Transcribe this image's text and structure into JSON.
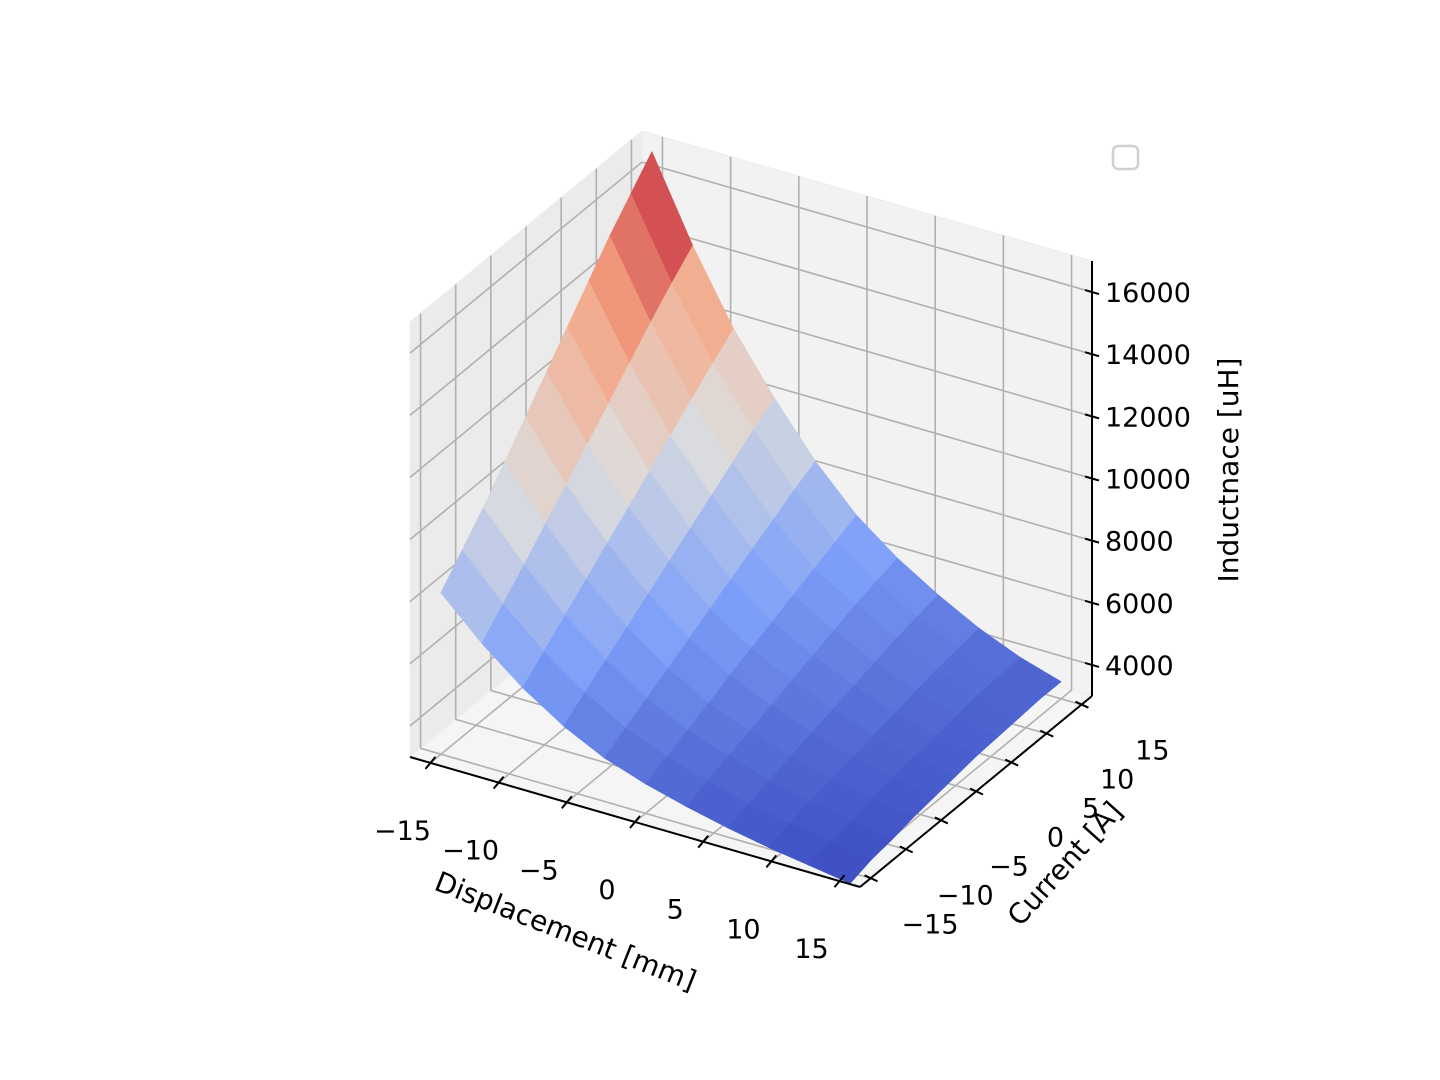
{
  "chart_data": {
    "type": "surface",
    "xlabel": "Displacement [mm]",
    "ylabel": "Current [A]",
    "zlabel": "Inductnace [uH]",
    "x_ticks": [
      -15,
      -10,
      -5,
      0,
      5,
      10,
      15
    ],
    "y_ticks": [
      -15,
      -10,
      -5,
      0,
      5,
      10,
      15
    ],
    "z_ticks": [
      4000,
      6000,
      8000,
      10000,
      12000,
      14000,
      16000
    ],
    "x_tick_labels": [
      "−15",
      "−10",
      "−5",
      "0",
      "5",
      "10",
      "15"
    ],
    "y_tick_labels": [
      "−15",
      "−10",
      "−5",
      "0",
      "5",
      "10",
      "15"
    ],
    "z_tick_labels": [
      "4000",
      "6000",
      "8000",
      "10000",
      "12000",
      "14000",
      "16000"
    ],
    "xlim": [
      -16.5,
      16.5
    ],
    "ylim": [
      -16.5,
      16.5
    ],
    "zlim": [
      3000,
      17000
    ],
    "colormap": "coolwarm",
    "grid": true,
    "legend": {
      "placement": "top-right",
      "entries": []
    },
    "x": [
      -15,
      -12,
      -9,
      -6,
      -3,
      0,
      3,
      6,
      9,
      12,
      15
    ],
    "y": [
      -15,
      -12,
      -9,
      -6,
      -3,
      0,
      3,
      6,
      9,
      12,
      15
    ],
    "z_rows_by_y": [
      [
        8200,
        6950,
        5900,
        5050,
        4400,
        3950,
        3600,
        3300,
        3050,
        2850,
        2650
      ],
      [
        9000,
        7650,
        6500,
        5550,
        4800,
        4250,
        3850,
        3500,
        3250,
        3050,
        2850
      ],
      [
        9800,
        8350,
        7100,
        6050,
        5200,
        4550,
        4100,
        3700,
        3400,
        3150,
        2950
      ],
      [
        10700,
        9100,
        7700,
        6550,
        5600,
        4850,
        4350,
        3900,
        3550,
        3300,
        3100
      ],
      [
        11600,
        9800,
        8300,
        7050,
        6000,
        5200,
        4600,
        4100,
        3700,
        3450,
        3200
      ],
      [
        12500,
        10550,
        8900,
        7550,
        6400,
        5500,
        4850,
        4300,
        3850,
        3550,
        3300
      ],
      [
        13400,
        11300,
        9500,
        8050,
        6800,
        5800,
        5100,
        4500,
        4000,
        3650,
        3400
      ],
      [
        14300,
        12050,
        10100,
        8550,
        7200,
        6100,
        5350,
        4700,
        4150,
        3750,
        3450
      ],
      [
        15200,
        12800,
        10700,
        9050,
        7600,
        6400,
        5600,
        4900,
        4300,
        3850,
        3500
      ],
      [
        16000,
        13500,
        11300,
        9550,
        8000,
        6700,
        5800,
        5050,
        4400,
        3900,
        3550
      ],
      [
        16800,
        14150,
        11850,
        10000,
        8350,
        7000,
        6000,
        5200,
        4500,
        3950,
        3550
      ]
    ]
  }
}
